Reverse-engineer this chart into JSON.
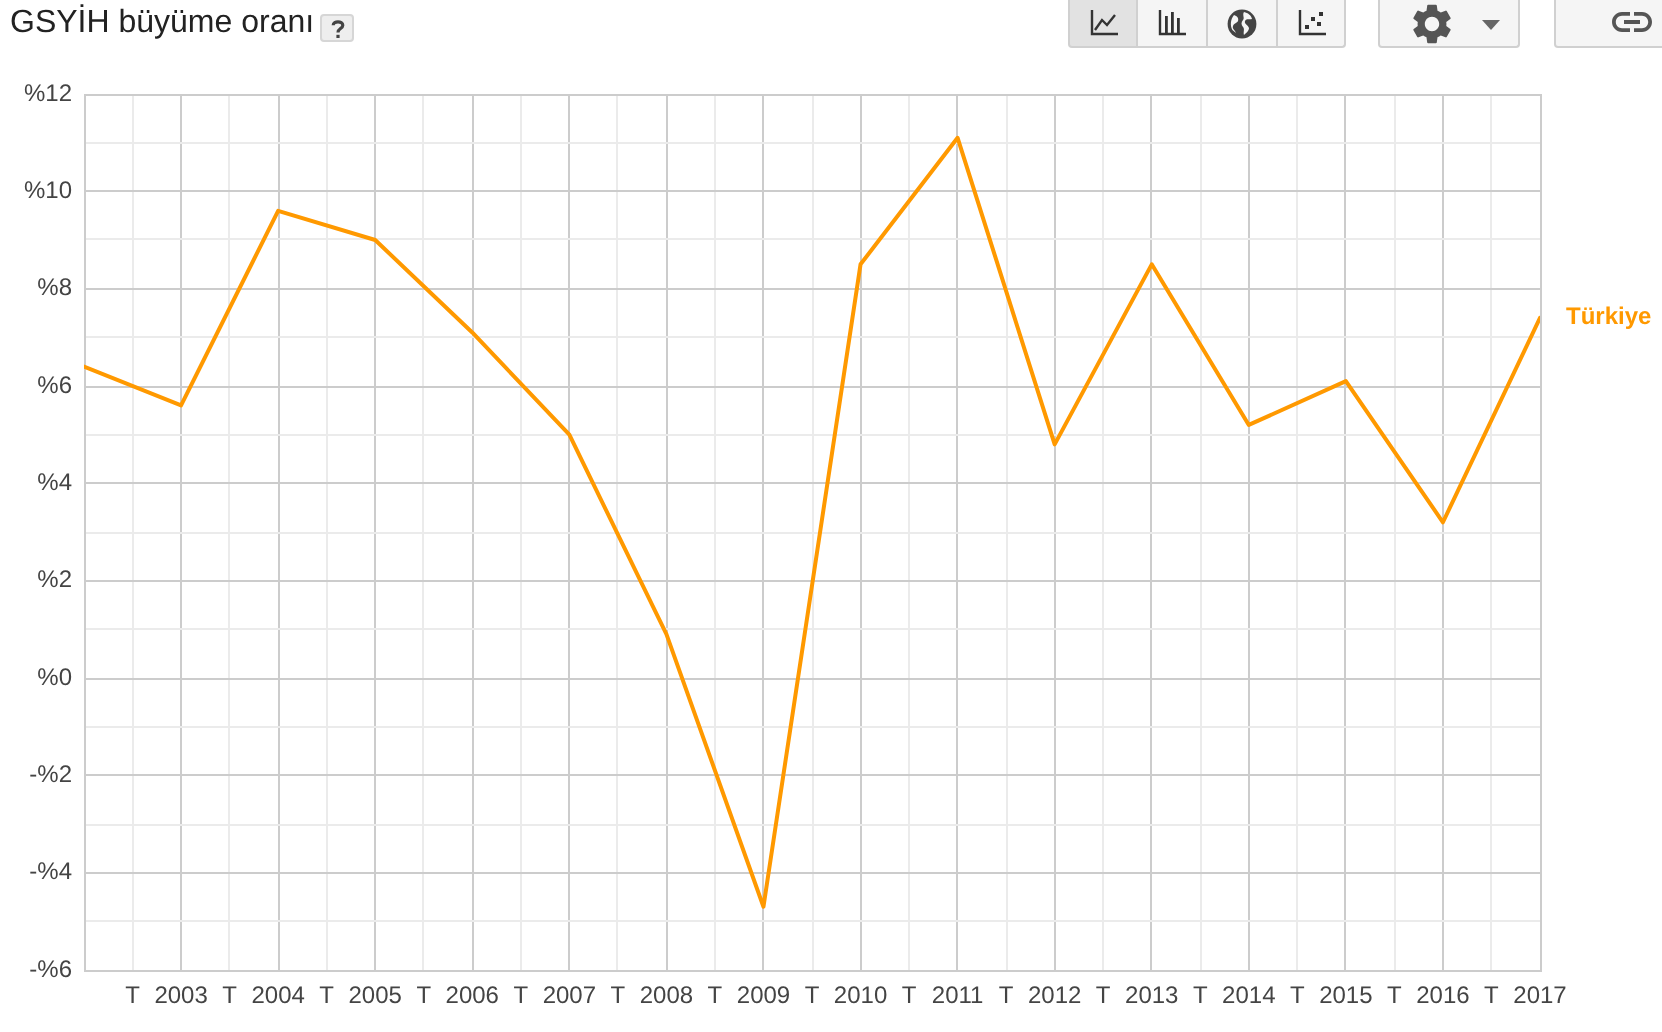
{
  "chart_data": {
    "type": "line",
    "title": "GSYİH büyüme oranı",
    "x": [
      2002,
      2003,
      2004,
      2005,
      2006,
      2007,
      2008,
      2009,
      2010,
      2011,
      2012,
      2013,
      2014,
      2015,
      2016,
      2017
    ],
    "series": [
      {
        "name": "Türkiye",
        "color": "#ff9900",
        "values": [
          6.4,
          5.6,
          9.6,
          9.0,
          7.1,
          5.0,
          0.9,
          -4.7,
          8.5,
          11.1,
          4.8,
          8.5,
          5.2,
          6.1,
          3.2,
          7.4
        ]
      }
    ],
    "xlim": [
      2002,
      2017
    ],
    "xticks": [
      {
        "value": 2002.5,
        "label": "T"
      },
      2003,
      {
        "value": 2003.5,
        "label": "T"
      },
      2004,
      {
        "value": 2004.5,
        "label": "T"
      },
      2005,
      {
        "value": 2005.5,
        "label": "T"
      },
      2006,
      {
        "value": 2006.5,
        "label": "T"
      },
      2007,
      {
        "value": 2007.5,
        "label": "T"
      },
      2008,
      {
        "value": 2008.5,
        "label": "T"
      },
      2009,
      {
        "value": 2009.5,
        "label": "T"
      },
      2010,
      {
        "value": 2010.5,
        "label": "T"
      },
      2011,
      {
        "value": 2011.5,
        "label": "T"
      },
      2012,
      {
        "value": 2012.5,
        "label": "T"
      },
      2013,
      {
        "value": 2013.5,
        "label": "T"
      },
      2014,
      {
        "value": 2014.5,
        "label": "T"
      },
      2015,
      {
        "value": 2015.5,
        "label": "T"
      },
      2016,
      {
        "value": 2016.5,
        "label": "T"
      },
      2017
    ],
    "ylim": [
      -6,
      12
    ],
    "yticks": [
      {
        "value": -6,
        "label": "-%6"
      },
      {
        "value": -5,
        "label": null
      },
      {
        "value": -4,
        "label": "-%4"
      },
      {
        "value": -3,
        "label": null
      },
      {
        "value": -2,
        "label": "-%2"
      },
      {
        "value": -1,
        "label": null
      },
      {
        "value": 0,
        "label": "%0"
      },
      {
        "value": 1,
        "label": null
      },
      {
        "value": 2,
        "label": "%2"
      },
      {
        "value": 3,
        "label": null
      },
      {
        "value": 4,
        "label": "%4"
      },
      {
        "value": 5,
        "label": null
      },
      {
        "value": 6,
        "label": "%6"
      },
      {
        "value": 7,
        "label": null
      },
      {
        "value": 8,
        "label": "%8"
      },
      {
        "value": 9,
        "label": null
      },
      {
        "value": 10,
        "label": "%10"
      },
      {
        "value": 11,
        "label": null
      },
      {
        "value": 12,
        "label": "%12"
      }
    ],
    "grid": true,
    "legend": false,
    "marker": "none",
    "line_style": "solid"
  }
}
